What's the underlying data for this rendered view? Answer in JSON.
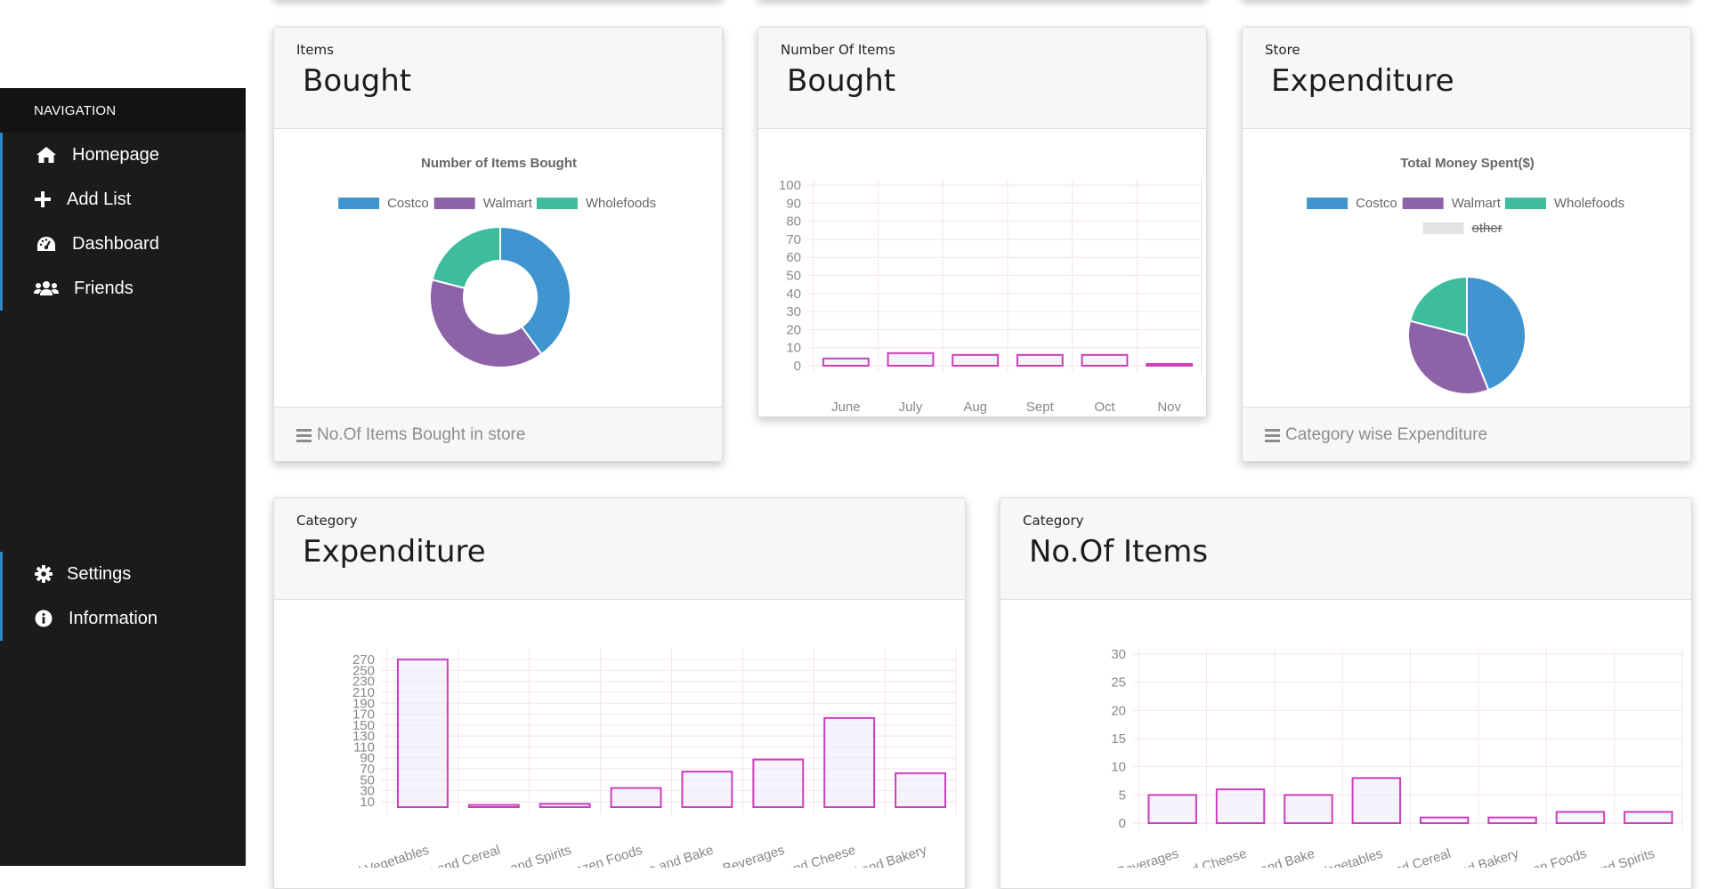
{
  "sidebar": {
    "heading": "NAVIGATION",
    "items": [
      {
        "label": "Homepage",
        "icon": "home-icon"
      },
      {
        "label": "Add List",
        "icon": "plus-icon"
      },
      {
        "label": "Dashboard",
        "icon": "dashboard-icon"
      },
      {
        "label": "Friends",
        "icon": "users-icon"
      }
    ],
    "bottom_items": [
      {
        "label": "Settings",
        "icon": "gear-icon"
      },
      {
        "label": "Information",
        "icon": "info-icon"
      }
    ],
    "accent": "#2f86c4"
  },
  "cards": {
    "items_bought": {
      "sub": "Items",
      "title": "Bought",
      "footer": "No.Of Items Bought in store"
    },
    "number_bought": {
      "sub": "Number Of Items",
      "title": "Bought"
    },
    "store_expenditure": {
      "sub": "Store",
      "title": "Expenditure",
      "footer": "Category wise Expenditure"
    },
    "category_expenditure": {
      "sub": "Category",
      "title": "Expenditure"
    },
    "category_items": {
      "sub": "Category",
      "title": "No.Of Items"
    }
  },
  "colors": {
    "costco": "#3f95d0",
    "walmart": "#8e62a9",
    "wholefoods": "#3dbd9d",
    "other": "#e3e3e3",
    "bar": "#cc3fbb",
    "grid": "#f4e2f1",
    "tick": "#888888"
  },
  "chart_data": [
    {
      "type": "pie",
      "variant": "doughnut",
      "title": "Number of Items Bought",
      "legend": [
        "Costco",
        "Walmart",
        "Wholefoods"
      ],
      "values": [
        40,
        39,
        21
      ]
    },
    {
      "type": "bar",
      "categories": [
        "June",
        "July",
        "Aug",
        "Sept",
        "Oct",
        "Nov"
      ],
      "values": [
        4,
        7,
        6,
        6,
        6,
        1
      ],
      "yticks": [
        "100",
        "90",
        "80",
        "70",
        "60",
        "50",
        "40",
        "30",
        "20",
        "10",
        "0"
      ],
      "ylim": [
        0,
        100
      ]
    },
    {
      "type": "pie",
      "title": "Total Money Spent($)",
      "legend": [
        "Costco",
        "Walmart",
        "Wholefoods",
        "other"
      ],
      "legend_struck": [
        false,
        false,
        false,
        true
      ],
      "values": [
        44,
        35,
        21,
        0
      ]
    },
    {
      "type": "bar",
      "categories": [
        "Fruits and Vegetables",
        "Breakfast and Cereal",
        "Wine,Beer and Spirits",
        "Frozen Foods",
        "Condiment,Spice and Bake",
        "Beverages",
        "Dairy,Eggs and Cheese",
        "Bread and Bakery"
      ],
      "values": [
        270,
        4,
        6,
        35,
        65,
        87,
        163,
        62
      ],
      "yticks": [
        "270",
        "250",
        "230",
        "210",
        "190",
        "170",
        "150",
        "130",
        "110",
        "90",
        "70",
        "50",
        "30",
        "10"
      ],
      "ylim": [
        0,
        280
      ]
    },
    {
      "type": "bar",
      "categories": [
        "Beverages",
        "Dairy,Eggs and Cheese",
        "Condiment,Spice and Bake",
        "Fruits and Vegetables",
        "Breakfast and Cereal",
        "Bread and Bakery",
        "Frozen Foods",
        "Wine,Beer and Spirits"
      ],
      "values": [
        5,
        6,
        5,
        8,
        1,
        1,
        2,
        2
      ],
      "yticks": [
        "30",
        "25",
        "20",
        "15",
        "10",
        "5",
        "0"
      ],
      "ylim": [
        0,
        30
      ]
    }
  ]
}
